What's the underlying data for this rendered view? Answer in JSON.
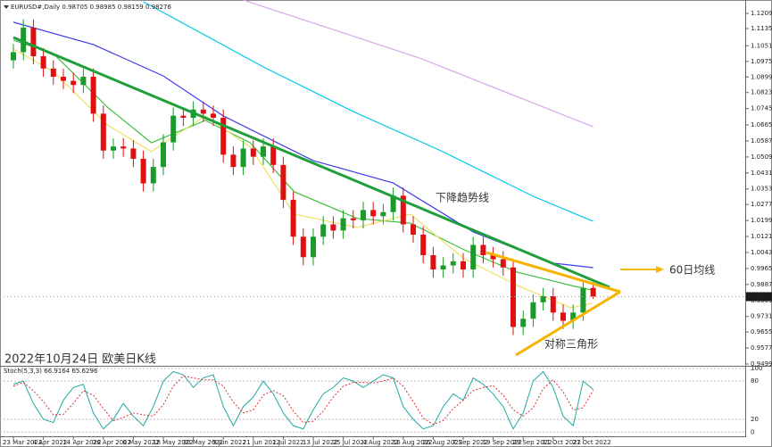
{
  "chart_data": [
    {
      "type": "candlestick",
      "symbol": "EURUSD#,Daily",
      "title": "2022年10月24日 欧美日K线",
      "annotations": [
        "下降趋势线",
        "60日均线",
        "对称三角形"
      ],
      "categories": [
        "23 Mar 2022",
        null,
        null,
        "4 Apr 2022",
        null,
        null,
        "14 Apr 2022",
        null,
        null,
        "26 Apr 2022",
        null,
        null,
        "6 May 2022",
        null,
        null,
        "18 May 2022",
        null,
        null,
        "30 May 2022",
        null,
        null,
        "9 Jun 2022",
        null,
        null,
        "21 Jun 2022",
        null,
        null,
        "1 Jul 2022",
        null,
        null,
        "13 Jul 2022",
        null,
        null,
        "25 Jul 2022",
        null,
        null,
        "4 Aug 2022",
        null,
        null,
        "16 Aug 2022",
        null,
        null,
        "26 Aug 2022",
        null,
        null,
        "7 Sep 2022",
        null,
        null,
        "19 Sep 2022",
        null,
        null,
        "29 Sep 2022",
        null,
        null,
        "11 Oct 2022",
        null,
        null,
        "21 Oct 2022",
        null
      ],
      "open": [
        1.098,
        1.102,
        1.114,
        1.1,
        1.094,
        1.09,
        1.088,
        1.086,
        1.09,
        1.072,
        1.054,
        1.056,
        1.055,
        1.05,
        1.038,
        1.046,
        1.058,
        1.071,
        1.07,
        1.074,
        1.072,
        1.07,
        1.052,
        1.046,
        1.055,
        1.051,
        1.056,
        1.047,
        1.03,
        1.012,
        1.002,
        1.012,
        1.018,
        1.015,
        1.021,
        1.02,
        1.025,
        1.022,
        1.024,
        1.032,
        1.018,
        1.013,
        1.003,
        0.996,
        0.998,
        1.0,
        0.996,
        1.008,
        1.003,
        1.001,
        0.997,
        0.968,
        0.972,
        0.98,
        0.983,
        0.975,
        0.971,
        0.975,
        0.98705
      ],
      "high": [
        1.106,
        1.118,
        1.118,
        1.104,
        1.098,
        1.094,
        1.092,
        1.094,
        1.094,
        1.076,
        1.06,
        1.06,
        1.059,
        1.054,
        1.05,
        1.062,
        1.075,
        1.075,
        1.078,
        1.078,
        1.076,
        1.074,
        1.056,
        1.059,
        1.059,
        1.06,
        1.06,
        1.051,
        1.034,
        1.016,
        1.016,
        1.022,
        1.022,
        1.025,
        1.025,
        1.029,
        1.029,
        1.028,
        1.036,
        1.036,
        1.022,
        1.017,
        1.007,
        1.002,
        1.004,
        1.004,
        1.012,
        1.012,
        1.007,
        1.005,
        1.001,
        0.976,
        0.984,
        0.987,
        0.987,
        0.979,
        0.979,
        0.99105,
        0.98985
      ],
      "low": [
        1.094,
        1.098,
        1.096,
        1.09,
        1.086,
        1.084,
        1.082,
        1.082,
        1.068,
        1.05,
        1.05,
        1.051,
        1.046,
        1.034,
        1.034,
        1.042,
        1.054,
        1.066,
        1.066,
        1.068,
        1.066,
        1.048,
        1.042,
        1.042,
        1.047,
        1.047,
        1.043,
        1.026,
        1.008,
        0.998,
        0.998,
        1.008,
        1.011,
        1.011,
        1.016,
        1.016,
        1.018,
        1.018,
        1.02,
        1.014,
        1.009,
        0.999,
        0.992,
        0.992,
        0.994,
        0.992,
        0.992,
        0.999,
        0.997,
        0.993,
        0.964,
        0.964,
        0.968,
        0.976,
        0.971,
        0.967,
        0.967,
        0.971,
        0.98159
      ],
      "close": [
        1.102,
        1.114,
        1.1,
        1.094,
        1.09,
        1.088,
        1.086,
        1.09,
        1.072,
        1.054,
        1.056,
        1.055,
        1.05,
        1.038,
        1.046,
        1.058,
        1.071,
        1.07,
        1.074,
        1.072,
        1.07,
        1.052,
        1.046,
        1.055,
        1.051,
        1.056,
        1.047,
        1.03,
        1.012,
        1.002,
        1.012,
        1.018,
        1.015,
        1.021,
        1.02,
        1.025,
        1.022,
        1.024,
        1.032,
        1.018,
        1.013,
        1.003,
        0.996,
        0.998,
        1.0,
        0.996,
        1.008,
        1.003,
        1.001,
        0.997,
        0.968,
        0.972,
        0.98,
        0.983,
        0.975,
        0.971,
        0.975,
        0.98705,
        0.98276
      ],
      "up_color": "#1a9a2a",
      "down_color": "#e01010",
      "ylim": [
        0.94903,
        1.12743
      ],
      "yticks": [
        {
          "value": 1.1209,
          "label": "1.12090"
        },
        {
          "value": 1.1135,
          "label": "1.11350"
        },
        {
          "value": 1.1051,
          "label": "1.10510"
        },
        {
          "value": 1.0975,
          "label": "1.09750"
        },
        {
          "value": 1.0899,
          "label": "1.08990"
        },
        {
          "value": 1.0823,
          "label": "1.08230"
        },
        {
          "value": 1.0745,
          "label": "1.07450"
        },
        {
          "value": 1.0665,
          "label": "1.06650"
        },
        {
          "value": 1.0587,
          "label": "1.05870"
        },
        {
          "value": 1.0509,
          "label": "1.05090"
        },
        {
          "value": 1.0431,
          "label": "1.04310"
        },
        {
          "value": 1.0353,
          "label": "1.03530"
        },
        {
          "value": 1.0277,
          "label": "1.02770"
        },
        {
          "value": 1.0199,
          "label": "1.01990"
        },
        {
          "value": 1.0121,
          "label": "1.01210"
        },
        {
          "value": 1.0043,
          "label": "1.00430"
        },
        {
          "value": 0.9965,
          "label": "0.99650"
        },
        {
          "value": 0.9887,
          "label": "0.98870"
        },
        {
          "value": 0.9809,
          "label": "0.98090"
        },
        {
          "value": 0.9731,
          "label": "0.97310"
        },
        {
          "value": 0.9655,
          "label": "0.96550"
        },
        {
          "value": 0.9577,
          "label": "0.95770"
        },
        {
          "value": 0.9499,
          "label": "0.94990"
        }
      ],
      "lines": [
        {
          "color": "#d8a8e8",
          "x": [
            23,
            40.6,
            58
          ],
          "values": [
            1.1274,
            1.0992,
            1.0656
          ]
        },
        {
          "color": "#00c8e8",
          "x": [
            13,
            25,
            34,
            43,
            52,
            58
          ],
          "values": [
            1.1266,
            1.0948,
            1.073,
            1.0534,
            1.0317,
            1.0195
          ]
        },
        {
          "color": "#3d3df0",
          "x": [
            0,
            8,
            15,
            21,
            30,
            38,
            46,
            54,
            58
          ],
          "values": [
            1.1166,
            1.1057,
            1.0904,
            1.0709,
            1.0491,
            1.0382,
            1.0143,
            0.9991,
            0.9969
          ]
        },
        {
          "color": "#40c040",
          "x": [
            0,
            4,
            9.4,
            13.8,
            19.2,
            23.7,
            28.1,
            34.4,
            39.7,
            45.1,
            50.4,
            55.8,
            57.9
          ],
          "values": [
            1.1078,
            1.1013,
            1.0752,
            1.0578,
            1.0687,
            1.0578,
            1.0339,
            1.0209,
            1.0186,
            1.0056,
            0.9947,
            0.9882,
            0.986
          ]
        },
        {
          "color": "#f0e060",
          "x": [
            0,
            4,
            9.4,
            13.8,
            19.2,
            23.7,
            28.1,
            34.4,
            39.7,
            45.1,
            50.4,
            55.8,
            57.9
          ],
          "values": [
            1.1035,
            1.0926,
            1.0665,
            1.0535,
            1.0709,
            1.0557,
            1.023,
            1.0165,
            1.023,
            1.0012,
            0.9882,
            0.9773,
            0.9795
          ]
        }
      ]
    },
    {
      "type": "line",
      "title": "Stoch(5,3,3)",
      "grid": true,
      "ylim": [
        -8,
        104
      ],
      "yticks": [
        100,
        80,
        20,
        0
      ],
      "series": [
        {
          "color": "#20a8a0",
          "dashed": false,
          "values": [
            75,
            80,
            45,
            20,
            15,
            50,
            70,
            75,
            30,
            5,
            20,
            45,
            25,
            10,
            40,
            80,
            95,
            90,
            70,
            85,
            90,
            40,
            10,
            40,
            55,
            80,
            60,
            30,
            10,
            5,
            35,
            60,
            70,
            85,
            80,
            70,
            80,
            90,
            85,
            40,
            20,
            5,
            10,
            40,
            60,
            50,
            85,
            75,
            60,
            40,
            5,
            30,
            80,
            95,
            70,
            25,
            10,
            80,
            66.9164
          ]
        },
        {
          "color": "#e03030",
          "dashed": true,
          "values": [
            72,
            78,
            65,
            48,
            27,
            28,
            45,
            65,
            58,
            37,
            18,
            23,
            30,
            27,
            25,
            43,
            72,
            88,
            85,
            82,
            82,
            72,
            47,
            30,
            35,
            58,
            65,
            57,
            33,
            15,
            17,
            33,
            55,
            72,
            78,
            78,
            77,
            80,
            85,
            72,
            48,
            22,
            12,
            18,
            37,
            50,
            65,
            70,
            73,
            58,
            35,
            25,
            38,
            68,
            82,
            63,
            35,
            38,
            65.6296
          ]
        }
      ]
    }
  ]
}
